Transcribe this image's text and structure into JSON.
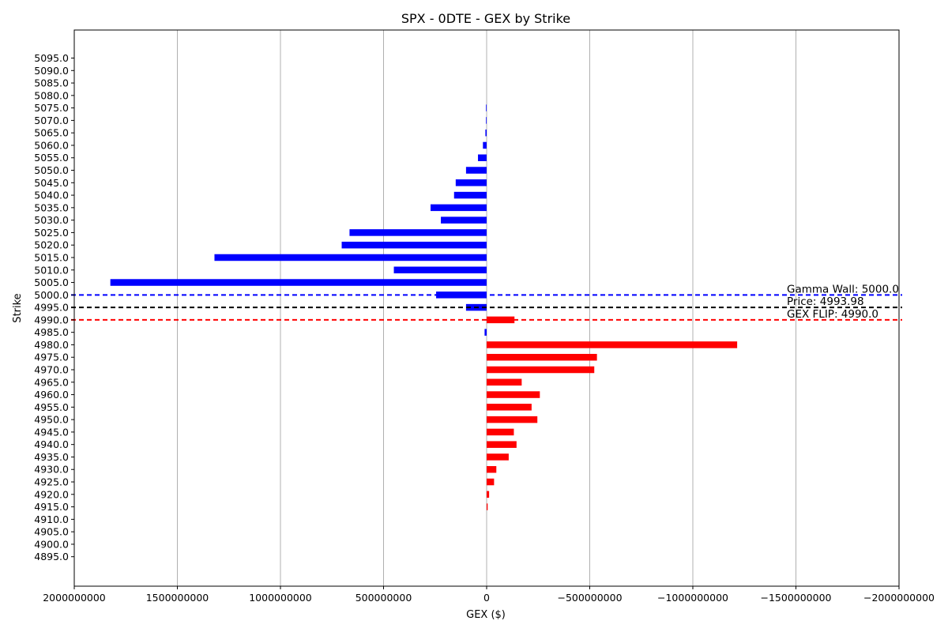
{
  "chart_data": {
    "type": "bar",
    "orientation": "horizontal",
    "title": "SPX - 0DTE - GEX by Strike",
    "xlabel": "GEX ($)",
    "ylabel": "Strike",
    "x_inverted": true,
    "xlim": [
      2000000000,
      -2000000000
    ],
    "x_ticks": [
      {
        "value": 2000000000,
        "label": "2000000000"
      },
      {
        "value": 1500000000,
        "label": "1500000000"
      },
      {
        "value": 1000000000,
        "label": "1000000000"
      },
      {
        "value": 500000000,
        "label": "500000000"
      },
      {
        "value": 0,
        "label": "0"
      },
      {
        "value": -500000000,
        "label": "−500000000"
      },
      {
        "value": -1000000000,
        "label": "−1000000000"
      },
      {
        "value": -1500000000,
        "label": "−1500000000"
      },
      {
        "value": -2000000000,
        "label": "−2000000000"
      }
    ],
    "grid": {
      "x": true,
      "y": false
    },
    "colors": {
      "positive": "#0000ff",
      "negative": "#ff0000"
    },
    "strikes": [
      {
        "label": "5095.0",
        "value": 0
      },
      {
        "label": "5090.0",
        "value": 0
      },
      {
        "label": "5085.0",
        "value": 0
      },
      {
        "label": "5080.0",
        "value": 0
      },
      {
        "label": "5075.0",
        "value": 3000000
      },
      {
        "label": "5070.0",
        "value": 3000000
      },
      {
        "label": "5065.0",
        "value": 6000000
      },
      {
        "label": "5060.0",
        "value": 18000000
      },
      {
        "label": "5055.0",
        "value": 42000000
      },
      {
        "label": "5050.0",
        "value": 100000000
      },
      {
        "label": "5045.0",
        "value": 150000000
      },
      {
        "label": "5040.0",
        "value": 158000000
      },
      {
        "label": "5035.0",
        "value": 272000000
      },
      {
        "label": "5030.0",
        "value": 222000000
      },
      {
        "label": "5025.0",
        "value": 665000000
      },
      {
        "label": "5020.0",
        "value": 703000000
      },
      {
        "label": "5015.0",
        "value": 1320000000
      },
      {
        "label": "5010.0",
        "value": 450000000
      },
      {
        "label": "5005.0",
        "value": 1825000000
      },
      {
        "label": "5000.0",
        "value": 245000000
      },
      {
        "label": "4995.0",
        "value": 100000000
      },
      {
        "label": "4990.0",
        "value": -135000000
      },
      {
        "label": "4985.0",
        "value": 10000000
      },
      {
        "label": "4980.0",
        "value": -1215000000
      },
      {
        "label": "4975.0",
        "value": -535000000
      },
      {
        "label": "4970.0",
        "value": -522000000
      },
      {
        "label": "4965.0",
        "value": -170000000
      },
      {
        "label": "4960.0",
        "value": -258000000
      },
      {
        "label": "4955.0",
        "value": -218000000
      },
      {
        "label": "4950.0",
        "value": -246000000
      },
      {
        "label": "4945.0",
        "value": -132000000
      },
      {
        "label": "4940.0",
        "value": -145000000
      },
      {
        "label": "4935.0",
        "value": -107000000
      },
      {
        "label": "4930.0",
        "value": -47000000
      },
      {
        "label": "4925.0",
        "value": -36000000
      },
      {
        "label": "4920.0",
        "value": -12000000
      },
      {
        "label": "4915.0",
        "value": -5000000
      },
      {
        "label": "4910.0",
        "value": 0
      },
      {
        "label": "4905.0",
        "value": 0
      },
      {
        "label": "4900.0",
        "value": 0
      },
      {
        "label": "4895.0",
        "value": 0
      }
    ],
    "reference_lines": [
      {
        "strike": 5000.0,
        "text": "Gamma Wall: 5000.0",
        "color": "#0000ff"
      },
      {
        "strike": 4995.0,
        "text": "Price: 4993.98",
        "color": "#000000"
      },
      {
        "strike": 4990.0,
        "text": "GEX FLIP: 4990.0",
        "color": "#ff0000"
      }
    ]
  }
}
